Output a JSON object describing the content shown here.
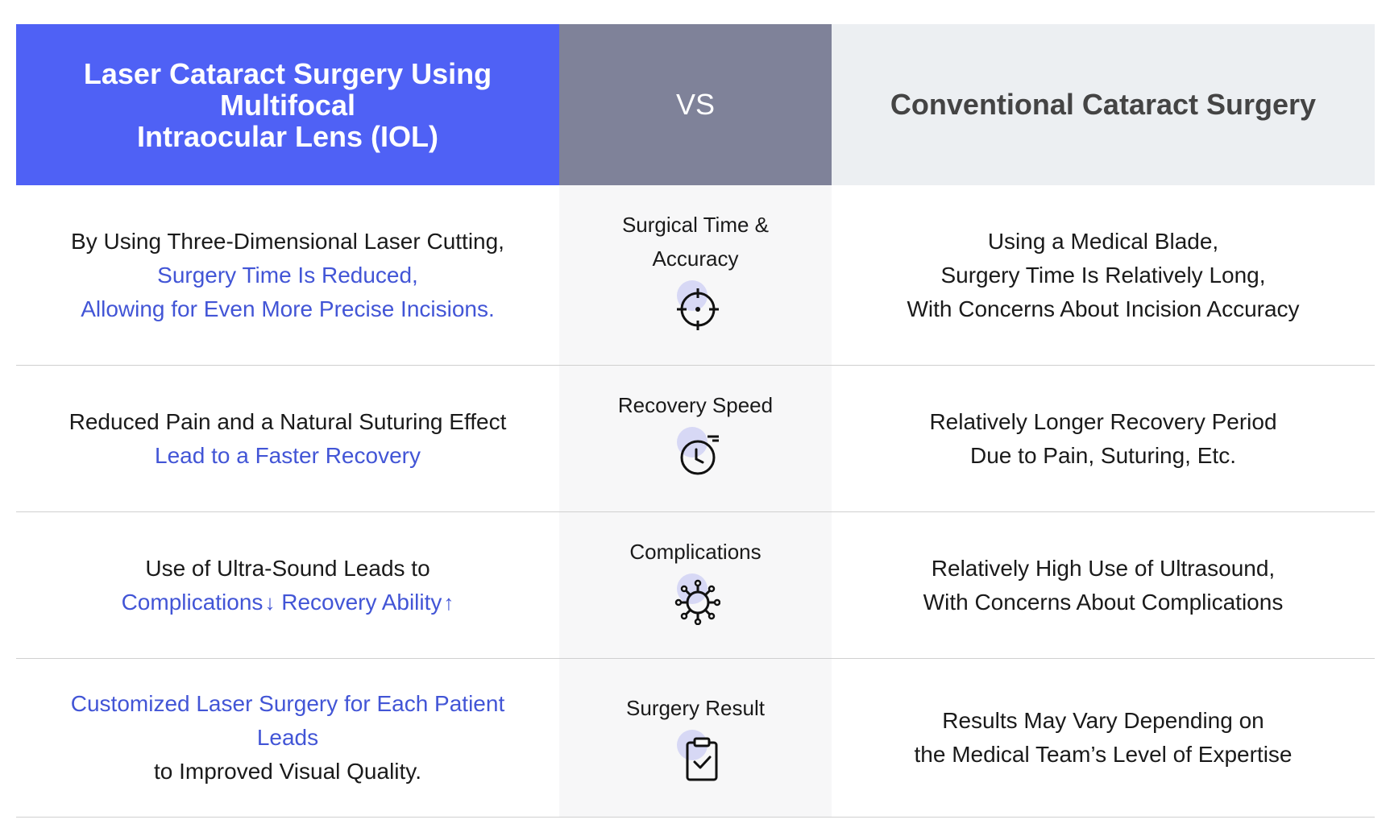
{
  "header": {
    "left_lines": [
      "Laser Cataract Surgery Using",
      "Multifocal",
      "Intraocular Lens (IOL)"
    ],
    "mid": "VS",
    "right": "Conventional Cataract Surgery"
  },
  "rows": [
    {
      "left_lines": [
        {
          "text": "By Using Three-Dimensional Laser Cutting,",
          "color": "black"
        },
        {
          "text": "Surgery Time Is Reduced,",
          "color": "blue"
        },
        {
          "text": "Allowing for Even More Precise Incisions.",
          "color": "blue"
        }
      ],
      "mid_label_lines": [
        "Surgical Time &",
        "Accuracy"
      ],
      "icon": "crosshair-icon",
      "right_lines": [
        "Using a Medical Blade,",
        "Surgery Time Is Relatively Long,",
        "With Concerns About Incision Accuracy"
      ]
    },
    {
      "left_lines": [
        {
          "text": "Reduced Pain and a Natural Suturing Effect",
          "color": "black"
        },
        {
          "text": "Lead to a Faster Recovery",
          "color": "blue"
        }
      ],
      "mid_label_lines": [
        "Recovery Speed"
      ],
      "icon": "stopwatch-icon",
      "right_lines": [
        "Relatively Longer Recovery Period",
        "Due to Pain, Suturing, Etc."
      ]
    },
    {
      "left_lines": [
        {
          "text": "Use of Ultra-Sound Leads to",
          "color": "black"
        }
      ],
      "left_blue_part_a": "Complications",
      "left_arrow_a": "↓",
      "left_blue_part_b": "Recovery Ability",
      "left_arrow_b": "↑",
      "mid_label_lines": [
        "Complications"
      ],
      "icon": "virus-icon",
      "right_lines": [
        "Relatively High Use of Ultrasound,",
        "With Concerns About Complications"
      ]
    },
    {
      "left_lines": [
        {
          "text": "Customized Laser Surgery for Each Patient",
          "color": "blue"
        },
        {
          "text": "Leads",
          "color": "blue"
        },
        {
          "text": "to Improved Visual Quality.",
          "color": "black"
        }
      ],
      "mid_label_lines": [
        "Surgery Result"
      ],
      "icon": "clipboard-check-icon",
      "right_lines": [
        "Results May Vary Depending on",
        "the Medical Team’s Level of Expertise"
      ]
    }
  ],
  "colors": {
    "header_left_bg": "#4f61f5",
    "header_mid_bg": "#7f8299",
    "header_right_bg": "#eceff2",
    "highlight_text": "#4255d6",
    "mid_column_bg": "#f7f7f8"
  }
}
